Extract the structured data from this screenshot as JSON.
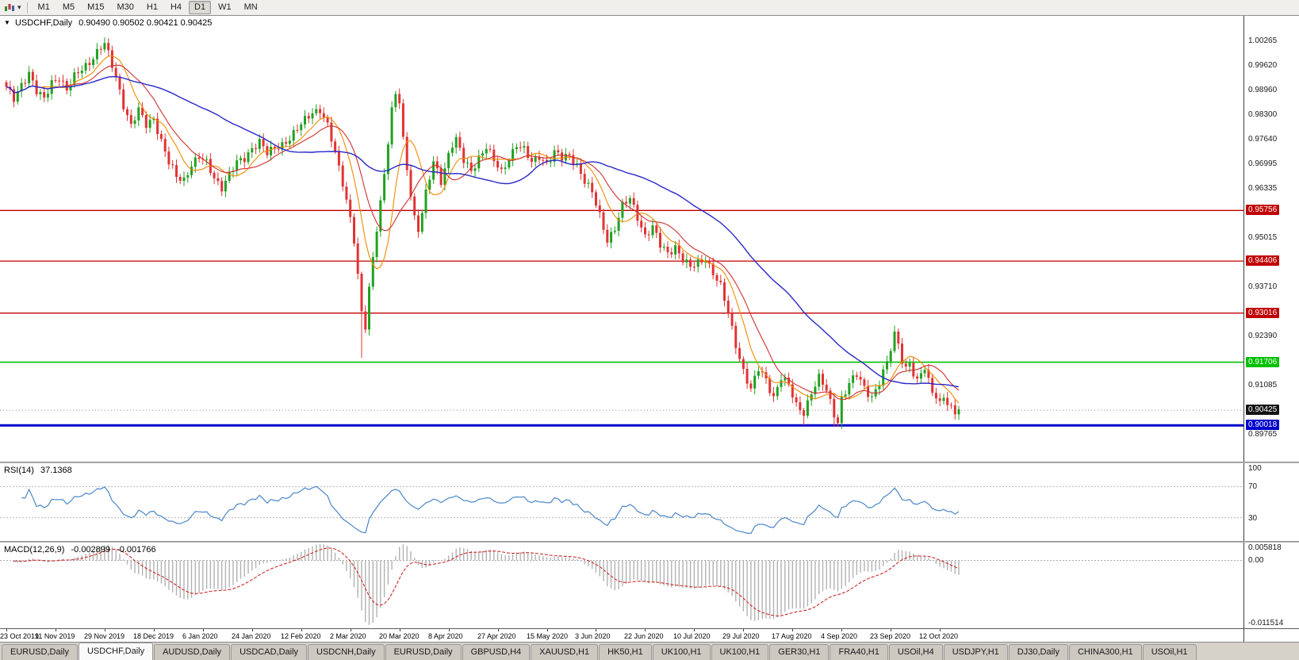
{
  "icons": {
    "collapse": "▼",
    "dropdown": "▾"
  },
  "toolbar": {
    "timeframes": [
      "M1",
      "M5",
      "M15",
      "M30",
      "H1",
      "H4",
      "D1",
      "W1",
      "MN"
    ],
    "active": "D1"
  },
  "chart": {
    "symbol_title": "USDCHF,Daily",
    "ohlc_display": "0.90490 0.90502 0.90421 0.90425",
    "open": "0.90490",
    "high": "0.90502",
    "low": "0.90421",
    "close": "0.90425",
    "current_price": {
      "price": 0.90425,
      "label": "0.90425",
      "badge_color": "#141414"
    }
  },
  "rsi": {
    "label": "RSI(14)",
    "value": "37.1368",
    "axis_ticks": [
      100,
      70,
      30
    ],
    "guide_levels": [
      70,
      30
    ],
    "line_color": "#4a86c8"
  },
  "macd": {
    "label": "MACD(12,26,9)",
    "macd_value": "-0.002899",
    "signal_value": "-0.001766",
    "axis_top": "0.005818",
    "axis_zero": "0.00",
    "axis_bottom": "-0.011514",
    "histogram_color": "#b2b2b2",
    "signal_color": "#cc2929"
  },
  "tabs": {
    "active_index": 1,
    "items": [
      "EURUSD,Daily",
      "USDCHF,Daily",
      "AUDUSD,Daily",
      "USDCAD,Daily",
      "USDCNH,Daily",
      "EURUSD,Daily",
      "GBPUSD,H4",
      "XAUUSD,H1",
      "HK50,H1",
      "UK100,H1",
      "UK100,H1",
      "GER30,H1",
      "FRA40,H1",
      "USOil,H4",
      "USDJPY,H1",
      "DJ30,Daily",
      "CHINA300,H1",
      "USOil,H1"
    ]
  },
  "chart_data": {
    "type": "candlestick",
    "symbol": "USDCHF",
    "timeframe": "Daily",
    "bars": 253,
    "up_color": "#21a121",
    "down_color": "#e03434",
    "y_axis": {
      "view_max": 1.0095,
      "view_min": 0.8905,
      "visible_ticks": [
        1.00265,
        0.9962,
        0.9896,
        0.983,
        0.9764,
        0.96995,
        0.96335,
        0.95015,
        0.9371,
        0.9239,
        0.91085,
        0.89765
      ]
    },
    "x_axis": {
      "bars_per_label": 13,
      "labels": [
        "23 Oct 2019",
        "11 Nov 2019",
        "29 Nov 2019",
        "18 Dec 2019",
        "6 Jan 2020",
        "24 Jan 2020",
        "12 Feb 2020",
        "2 Mar 2020",
        "20 Mar 2020",
        "8 Apr 2020",
        "27 Apr 2020",
        "15 May 2020",
        "3 Jun 2020",
        "22 Jun 2020",
        "10 Jul 2020",
        "29 Jul 2020",
        "17 Aug 2020",
        "4 Sep 2020",
        "23 Sep 2020",
        "12 Oct 2020"
      ]
    },
    "horizontal_levels": [
      {
        "price": 0.95756,
        "label": "0.95756",
        "color": "#c00000",
        "line_width": 1.3
      },
      {
        "price": 0.94406,
        "label": "0.94406",
        "color": "#c00000",
        "line_width": 1.3
      },
      {
        "price": 0.93016,
        "label": "0.93016",
        "color": "#c00000",
        "line_width": 1.3
      },
      {
        "price": 0.91706,
        "label": "0.91706",
        "color": "#00c000",
        "line_width": 1.6
      },
      {
        "price": 0.90018,
        "label": "0.90018",
        "color": "#0000cc",
        "line_width": 3
      }
    ],
    "moving_averages": [
      {
        "period": 8,
        "color": "#f08a00",
        "width": 1.1
      },
      {
        "period": 14,
        "color": "#d03030",
        "width": 1.1
      },
      {
        "period": 45,
        "color": "#2828c8",
        "width": 1.4
      }
    ],
    "close_anchors": [
      [
        0,
        0.99
      ],
      [
        2,
        0.9872
      ],
      [
        4,
        0.9915
      ],
      [
        6,
        0.9945
      ],
      [
        8,
        0.989
      ],
      [
        10,
        0.987
      ],
      [
        12,
        0.992
      ],
      [
        14,
        0.9935
      ],
      [
        16,
        0.9895
      ],
      [
        18,
        0.993
      ],
      [
        20,
        0.9955
      ],
      [
        22,
        0.9975
      ],
      [
        24,
        0.9998
      ],
      [
        26,
        1.0018
      ],
      [
        27,
        0.999
      ],
      [
        29,
        0.9935
      ],
      [
        31,
        0.986
      ],
      [
        33,
        0.98
      ],
      [
        35,
        0.984
      ],
      [
        37,
        0.9805
      ],
      [
        39,
        0.9825
      ],
      [
        41,
        0.976
      ],
      [
        43,
        0.97
      ],
      [
        45,
        0.9665
      ],
      [
        47,
        0.966
      ],
      [
        49,
        0.97
      ],
      [
        51,
        0.9715
      ],
      [
        53,
        0.97
      ],
      [
        55,
        0.9665
      ],
      [
        57,
        0.964
      ],
      [
        59,
        0.967
      ],
      [
        61,
        0.97
      ],
      [
        63,
        0.9715
      ],
      [
        65,
        0.9745
      ],
      [
        67,
        0.976
      ],
      [
        69,
        0.9725
      ],
      [
        71,
        0.974
      ],
      [
        73,
        0.9755
      ],
      [
        75,
        0.977
      ],
      [
        77,
        0.979
      ],
      [
        79,
        0.9815
      ],
      [
        81,
        0.984
      ],
      [
        83,
        0.9848
      ],
      [
        85,
        0.98
      ],
      [
        87,
        0.9725
      ],
      [
        89,
        0.965
      ],
      [
        91,
        0.956
      ],
      [
        92,
        0.95
      ],
      [
        93,
        0.94
      ],
      [
        94,
        0.93
      ],
      [
        95,
        0.926
      ],
      [
        96,
        0.936
      ],
      [
        97,
        0.945
      ],
      [
        98,
        0.953
      ],
      [
        99,
        0.96
      ],
      [
        100,
        0.968
      ],
      [
        101,
        0.976
      ],
      [
        102,
        0.984
      ],
      [
        103,
        0.9885
      ],
      [
        104,
        0.986
      ],
      [
        105,
        0.976
      ],
      [
        106,
        0.969
      ],
      [
        107,
        0.962
      ],
      [
        108,
        0.956
      ],
      [
        109,
        0.953
      ],
      [
        110,
        0.957
      ],
      [
        111,
        0.962
      ],
      [
        112,
        0.966
      ],
      [
        113,
        0.97
      ],
      [
        114,
        0.968
      ],
      [
        115,
        0.9655
      ],
      [
        116,
        0.969
      ],
      [
        117,
        0.973
      ],
      [
        118,
        0.9755
      ],
      [
        119,
        0.9765
      ],
      [
        121,
        0.9705
      ],
      [
        123,
        0.968
      ],
      [
        125,
        0.972
      ],
      [
        127,
        0.9748
      ],
      [
        129,
        0.9705
      ],
      [
        131,
        0.9675
      ],
      [
        133,
        0.9718
      ],
      [
        135,
        0.9755
      ],
      [
        137,
        0.9735
      ],
      [
        139,
        0.97
      ],
      [
        141,
        0.9722
      ],
      [
        143,
        0.9705
      ],
      [
        145,
        0.973
      ],
      [
        147,
        0.9712
      ],
      [
        149,
        0.9722
      ],
      [
        151,
        0.97
      ],
      [
        153,
        0.9655
      ],
      [
        155,
        0.962
      ],
      [
        157,
        0.956
      ],
      [
        159,
        0.95
      ],
      [
        161,
        0.953
      ],
      [
        163,
        0.9585
      ],
      [
        165,
        0.9605
      ],
      [
        167,
        0.956
      ],
      [
        169,
        0.951
      ],
      [
        171,
        0.953
      ],
      [
        173,
        0.948
      ],
      [
        175,
        0.9462
      ],
      [
        177,
        0.9482
      ],
      [
        179,
        0.9445
      ],
      [
        181,
        0.942
      ],
      [
        183,
        0.9435
      ],
      [
        185,
        0.945
      ],
      [
        187,
        0.941
      ],
      [
        189,
        0.937
      ],
      [
        191,
        0.93
      ],
      [
        193,
        0.922
      ],
      [
        195,
        0.915
      ],
      [
        197,
        0.9095
      ],
      [
        199,
        0.915
      ],
      [
        201,
        0.9125
      ],
      [
        203,
        0.908
      ],
      [
        205,
        0.913
      ],
      [
        207,
        0.9105
      ],
      [
        209,
        0.9055
      ],
      [
        211,
        0.904
      ],
      [
        213,
        0.909
      ],
      [
        215,
        0.9125
      ],
      [
        217,
        0.9095
      ],
      [
        219,
        0.9035
      ],
      [
        220,
        0.9015
      ],
      [
        221,
        0.9075
      ],
      [
        223,
        0.911
      ],
      [
        225,
        0.9135
      ],
      [
        227,
        0.9105
      ],
      [
        229,
        0.908
      ],
      [
        231,
        0.9115
      ],
      [
        233,
        0.9165
      ],
      [
        234,
        0.9205
      ],
      [
        235,
        0.9245
      ],
      [
        236,
        0.9225
      ],
      [
        237,
        0.918
      ],
      [
        238,
        0.9155
      ],
      [
        239,
        0.9172
      ],
      [
        240,
        0.9135
      ],
      [
        241,
        0.9112
      ],
      [
        242,
        0.914
      ],
      [
        243,
        0.9152
      ],
      [
        244,
        0.9122
      ],
      [
        245,
        0.91
      ],
      [
        246,
        0.9082
      ],
      [
        247,
        0.9062
      ],
      [
        248,
        0.9082
      ],
      [
        249,
        0.9052
      ],
      [
        250,
        0.9042
      ],
      [
        251,
        0.9035
      ],
      [
        252,
        0.90425
      ]
    ],
    "spike_lows": [
      [
        94,
        0.9182
      ],
      [
        211,
        0.9002
      ],
      [
        219,
        0.8998
      ]
    ],
    "indicators": [
      {
        "name": "RSI",
        "period": 14,
        "last_value": 37.1368,
        "range": [
          0,
          100
        ],
        "levels": [
          70,
          30
        ]
      },
      {
        "name": "MACD",
        "fast": 12,
        "slow": 26,
        "signal_period": 9,
        "macd_value": -0.002899,
        "signal_value": -0.001766,
        "axis_max": 0.005818,
        "axis_min": -0.011514
      }
    ]
  }
}
